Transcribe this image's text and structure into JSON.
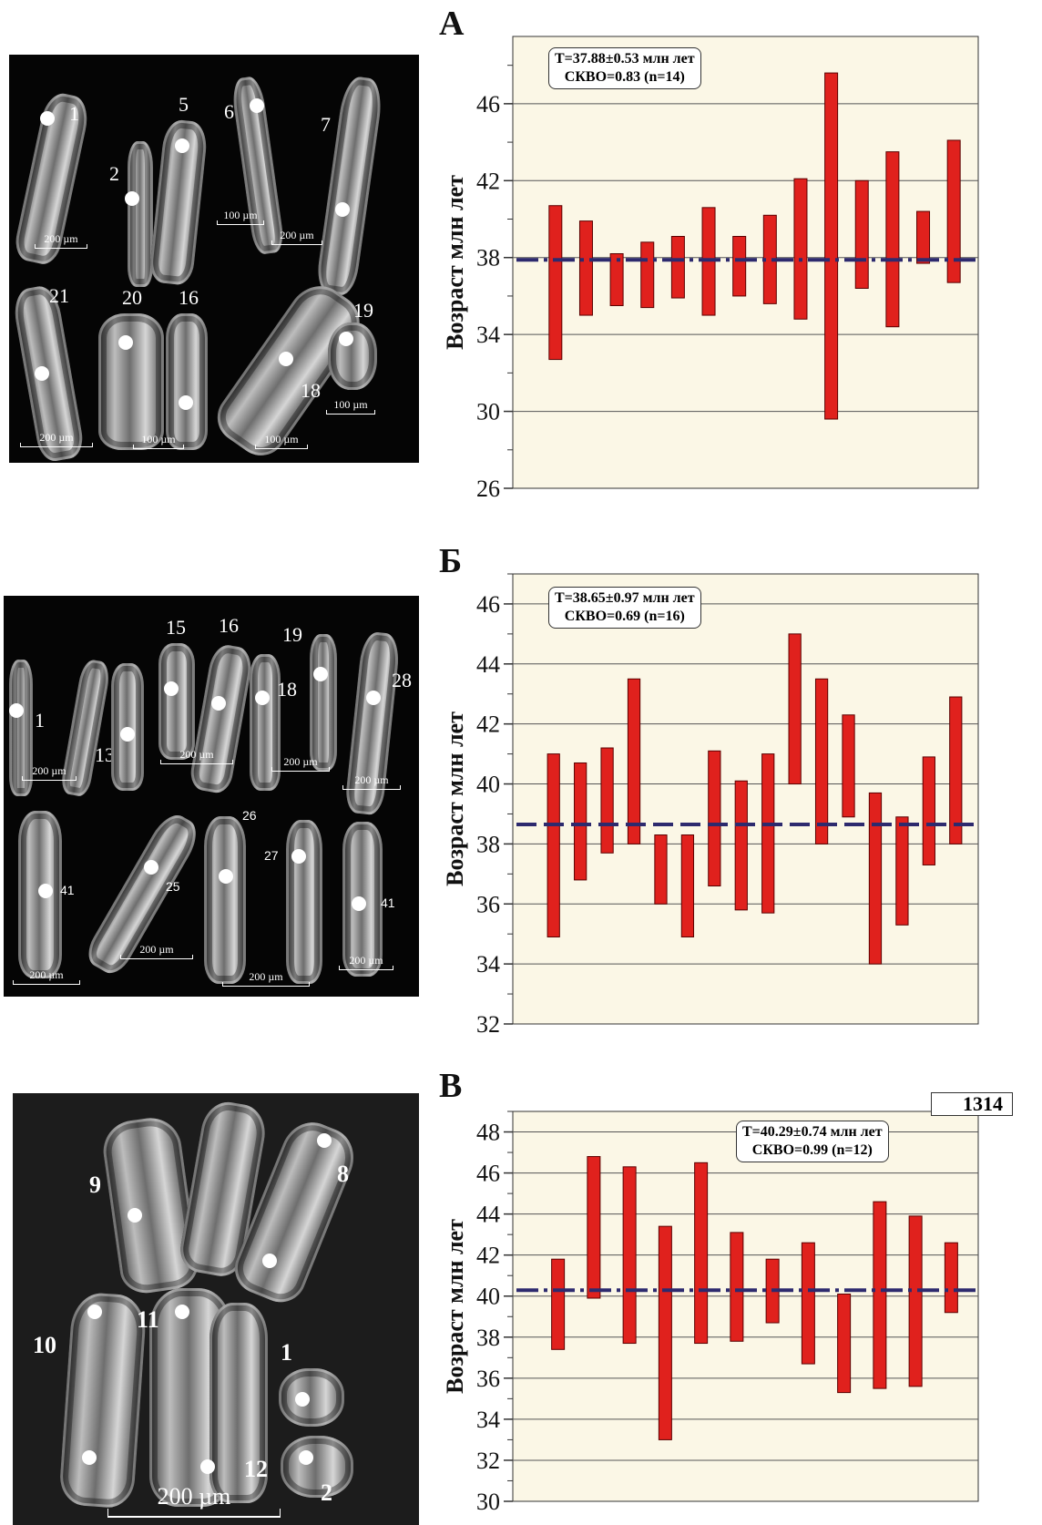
{
  "colors": {
    "plot_bg": "#fbf7e6",
    "bar_fill": "#e0211d",
    "bar_stroke": "#5a0000",
    "mean_line": "#2d2a6e",
    "grid": "#555555"
  },
  "panels": [
    {
      "letter": "А",
      "photo": {
        "grains": [
          {
            "label": "1"
          },
          {
            "label": "2"
          },
          {
            "label": "5"
          },
          {
            "label": "6"
          },
          {
            "label": "7"
          },
          {
            "label": "21"
          },
          {
            "label": "20"
          },
          {
            "label": "16"
          },
          {
            "label": "18"
          },
          {
            "label": "19"
          }
        ],
        "scale_bars": [
          "200  µm",
          "100  µm",
          "200  µm",
          "200  µm",
          "100  µm",
          "100  µm",
          "100  µm"
        ]
      },
      "stat_lines": [
        "T=37.88±0.53 млн лет",
        "СКВО=0.83 (n=14)"
      ],
      "chart_data": {
        "type": "bar",
        "ylabel": "Возраст млн лет",
        "ylim": [
          26,
          49.5
        ],
        "yticks": [
          26,
          30,
          34,
          38,
          42,
          46
        ],
        "mean": 37.88,
        "mean_style": "dash-dot",
        "series": [
          {
            "values": [
              [
                32.7,
                40.7
              ],
              [
                35.0,
                39.9
              ],
              [
                35.5,
                38.2
              ],
              [
                35.4,
                38.8
              ],
              [
                35.9,
                39.1
              ],
              [
                35.0,
                40.6
              ],
              [
                36.0,
                39.1
              ],
              [
                35.6,
                40.2
              ],
              [
                34.8,
                42.1
              ],
              [
                29.6,
                47.6
              ],
              [
                36.4,
                42.0
              ],
              [
                34.4,
                43.5
              ],
              [
                37.7,
                40.4
              ],
              [
                36.7,
                44.1
              ]
            ]
          }
        ]
      }
    },
    {
      "letter": "Б",
      "photo": {
        "grains": [
          {
            "label": "1"
          },
          {
            "label": "13"
          },
          {
            "label": "15"
          },
          {
            "label": "16"
          },
          {
            "label": "19"
          },
          {
            "label": "18"
          },
          {
            "label": "28"
          },
          {
            "label": "41"
          },
          {
            "label": "25"
          },
          {
            "label": "26"
          },
          {
            "label": "27"
          },
          {
            "label": "41"
          }
        ],
        "scale_bars": [
          "200  µm",
          "200  µm",
          "200  µm",
          "200  µm",
          "200  µm",
          "200  µm",
          "200  µm",
          "200  µm"
        ]
      },
      "stat_lines": [
        "T=38.65±0.97 млн лет",
        "СКВО=0.69 (n=16)"
      ],
      "chart_data": {
        "type": "bar",
        "ylabel": "Возраст млн лет",
        "ylim": [
          32,
          47
        ],
        "yticks": [
          32,
          34,
          36,
          38,
          40,
          42,
          44,
          46
        ],
        "mean": 38.65,
        "mean_style": "dashed",
        "series": [
          {
            "values": [
              [
                34.9,
                41.0
              ],
              [
                36.8,
                40.7
              ],
              [
                37.7,
                41.2
              ],
              [
                38.0,
                43.5
              ],
              [
                36.0,
                38.3
              ],
              [
                34.9,
                38.3
              ],
              [
                36.6,
                41.1
              ],
              [
                35.8,
                40.1
              ],
              [
                35.7,
                41.0
              ],
              [
                40.0,
                45.0
              ],
              [
                38.0,
                43.5
              ],
              [
                38.9,
                42.3
              ],
              [
                34.0,
                39.7
              ],
              [
                35.3,
                38.9
              ],
              [
                37.3,
                40.9
              ],
              [
                38.0,
                42.9
              ]
            ]
          }
        ]
      }
    },
    {
      "letter": "В",
      "photo": {
        "grains": [
          {
            "label": "9"
          },
          {
            "label": "8"
          },
          {
            "label": "10"
          },
          {
            "label": "11"
          },
          {
            "label": "12"
          },
          {
            "label": "1"
          },
          {
            "label": "2"
          }
        ],
        "scale_bars": [
          "200  µm"
        ]
      },
      "tag": "1314",
      "stat_lines": [
        "T=40.29±0.74 млн лет",
        "СКВО=0.99 (n=12)"
      ],
      "chart_data": {
        "type": "bar",
        "ylabel": "Возраст млн лет",
        "ylim": [
          30,
          49
        ],
        "yticks": [
          30,
          32,
          34,
          36,
          38,
          40,
          42,
          44,
          46,
          48
        ],
        "mean": 40.29,
        "mean_style": "dash-dot",
        "series": [
          {
            "values": [
              [
                37.4,
                41.8
              ],
              [
                39.9,
                46.8
              ],
              [
                37.7,
                46.3
              ],
              [
                33.0,
                43.4
              ],
              [
                37.7,
                46.5
              ],
              [
                37.8,
                43.1
              ],
              [
                38.7,
                41.8
              ],
              [
                36.7,
                42.6
              ],
              [
                35.3,
                40.1
              ],
              [
                35.5,
                44.6
              ],
              [
                35.6,
                43.9
              ],
              [
                39.2,
                42.6
              ]
            ]
          }
        ]
      }
    }
  ]
}
